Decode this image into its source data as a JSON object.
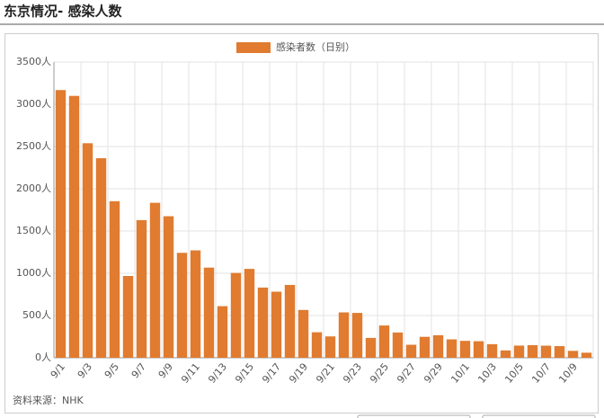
{
  "title": "东京情况- 感染人数",
  "chart_data": {
    "type": "bar",
    "legend": "感染者数（日别）",
    "color": "#e07b30",
    "categories": [
      "9/1",
      null,
      "9/3",
      null,
      "9/5",
      null,
      "9/7",
      null,
      "9/9",
      null,
      "9/11",
      null,
      "9/13",
      null,
      "9/15",
      null,
      "9/17",
      null,
      "9/19",
      null,
      "9/21",
      null,
      "9/23",
      null,
      "9/25",
      null,
      "9/27",
      null,
      "9/29",
      null,
      "10/1",
      null,
      "10/3",
      null,
      "10/5",
      null,
      "10/7",
      null,
      "10/9",
      null
    ],
    "values": [
      3168,
      3099,
      2539,
      2362,
      1853,
      968,
      1629,
      1834,
      1675,
      1242,
      1271,
      1067,
      611,
      1004,
      1052,
      831,
      782,
      862,
      566,
      302,
      253,
      537,
      531,
      235,
      382,
      299,
      154,
      248,
      267,
      218,
      200,
      196,
      161,
      87,
      144,
      149,
      143,
      138,
      82,
      60
    ],
    "ylim": [
      0,
      3500
    ],
    "yticks": [
      {
        "value": 0,
        "label": "0人"
      },
      {
        "value": 500,
        "label": "500人"
      },
      {
        "value": 1000,
        "label": "1000人"
      },
      {
        "value": 1500,
        "label": "1500人"
      },
      {
        "value": 2000,
        "label": "2000人"
      },
      {
        "value": 2500,
        "label": "2500人"
      },
      {
        "value": 3000,
        "label": "3000人"
      },
      {
        "value": 3500,
        "label": "3500人"
      }
    ],
    "grid": true,
    "source": "资料来源：NHK"
  }
}
